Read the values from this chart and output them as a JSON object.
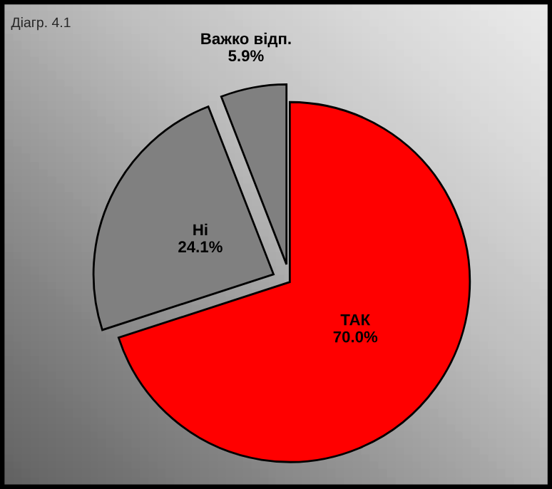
{
  "chart_data": {
    "type": "pie",
    "annotations": [
      "Діагр. 4.1"
    ],
    "categories": [
      "ТАК",
      "Ні",
      "Важко відп."
    ],
    "values": [
      70.0,
      24.1,
      5.9
    ],
    "value_labels": [
      "70.0%",
      "24.1%",
      "5.9%"
    ],
    "colors": [
      "#ff0000",
      "#808080",
      "#808080"
    ],
    "legend": false
  }
}
